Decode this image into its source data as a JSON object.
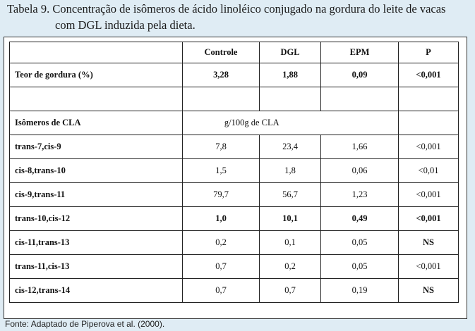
{
  "caption": {
    "line1": "Tabela 9. Concentração de isômeros de ácido linoléico conjugado na gordura do leite de vacas",
    "line2": "com DGL induzida pela dieta."
  },
  "table": {
    "headers": [
      "",
      "Controle",
      "DGL",
      "EPM",
      "P"
    ],
    "fat_row": {
      "label": "Teor de gordura (%)",
      "controle": "3,28",
      "dgl": "1,88",
      "epm": "0,09",
      "p": "<0,001"
    },
    "section": {
      "label": "Isômeros de CLA",
      "unit": "g/100g de CLA"
    },
    "rows": [
      {
        "label": "trans-7,cis-9",
        "controle": "7,8",
        "dgl": "23,4",
        "epm": "1,66",
        "p": "<0,001"
      },
      {
        "label": "cis-8,trans-10",
        "controle": "1,5",
        "dgl": "1,8",
        "epm": "0,06",
        "p": "<0,01"
      },
      {
        "label": "cis-9,trans-11",
        "controle": "79,7",
        "dgl": "56,7",
        "epm": "1,23",
        "p": "<0,001"
      },
      {
        "label": "trans-10,cis-12",
        "controle": "1,0",
        "dgl": "10,1",
        "epm": "0,49",
        "p": "<0,001"
      },
      {
        "label": "cis-11,trans-13",
        "controle": "0,2",
        "dgl": "0,1",
        "epm": "0,05",
        "p": "NS"
      },
      {
        "label": "trans-11,cis-13",
        "controle": "0,7",
        "dgl": "0,2",
        "epm": "0,05",
        "p": "<0,001"
      },
      {
        "label": "cis-12,trans-14",
        "controle": "0,7",
        "dgl": "0,7",
        "epm": "0,19",
        "p": "NS"
      }
    ]
  },
  "source_note": "Fonte: Adaptado de Piperova et al. (2000)."
}
